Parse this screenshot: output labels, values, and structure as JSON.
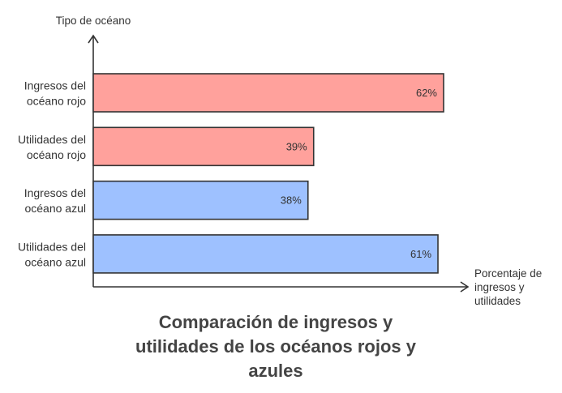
{
  "chart_data": {
    "type": "bar",
    "orientation": "horizontal",
    "title": "Comparación de ingresos y utilidades de los océanos rojos y azules",
    "title_lines": [
      "Comparación de ingresos y",
      "utilidades de los océanos rojos y",
      "azules"
    ],
    "ylabel": "Tipo de océano",
    "xlabel": "Porcentaje de ingresos y utilidades",
    "xlabel_lines": [
      "Porcentaje de",
      "ingresos y",
      "utilidades"
    ],
    "xlim": [
      0,
      100
    ],
    "grid": false,
    "categories": [
      [
        "Ingresos del",
        "océano rojo"
      ],
      [
        "Utilidades del",
        "océano rojo"
      ],
      [
        "Ingresos del",
        "océano azul"
      ],
      [
        "Utilidades del",
        "océano azul"
      ]
    ],
    "values": [
      62,
      39,
      38,
      61
    ],
    "value_labels": [
      "62%",
      "39%",
      "38%",
      "61%"
    ],
    "colors": [
      "#ffa19c",
      "#ffa19c",
      "#9ec1ff",
      "#9ec1ff"
    ]
  }
}
